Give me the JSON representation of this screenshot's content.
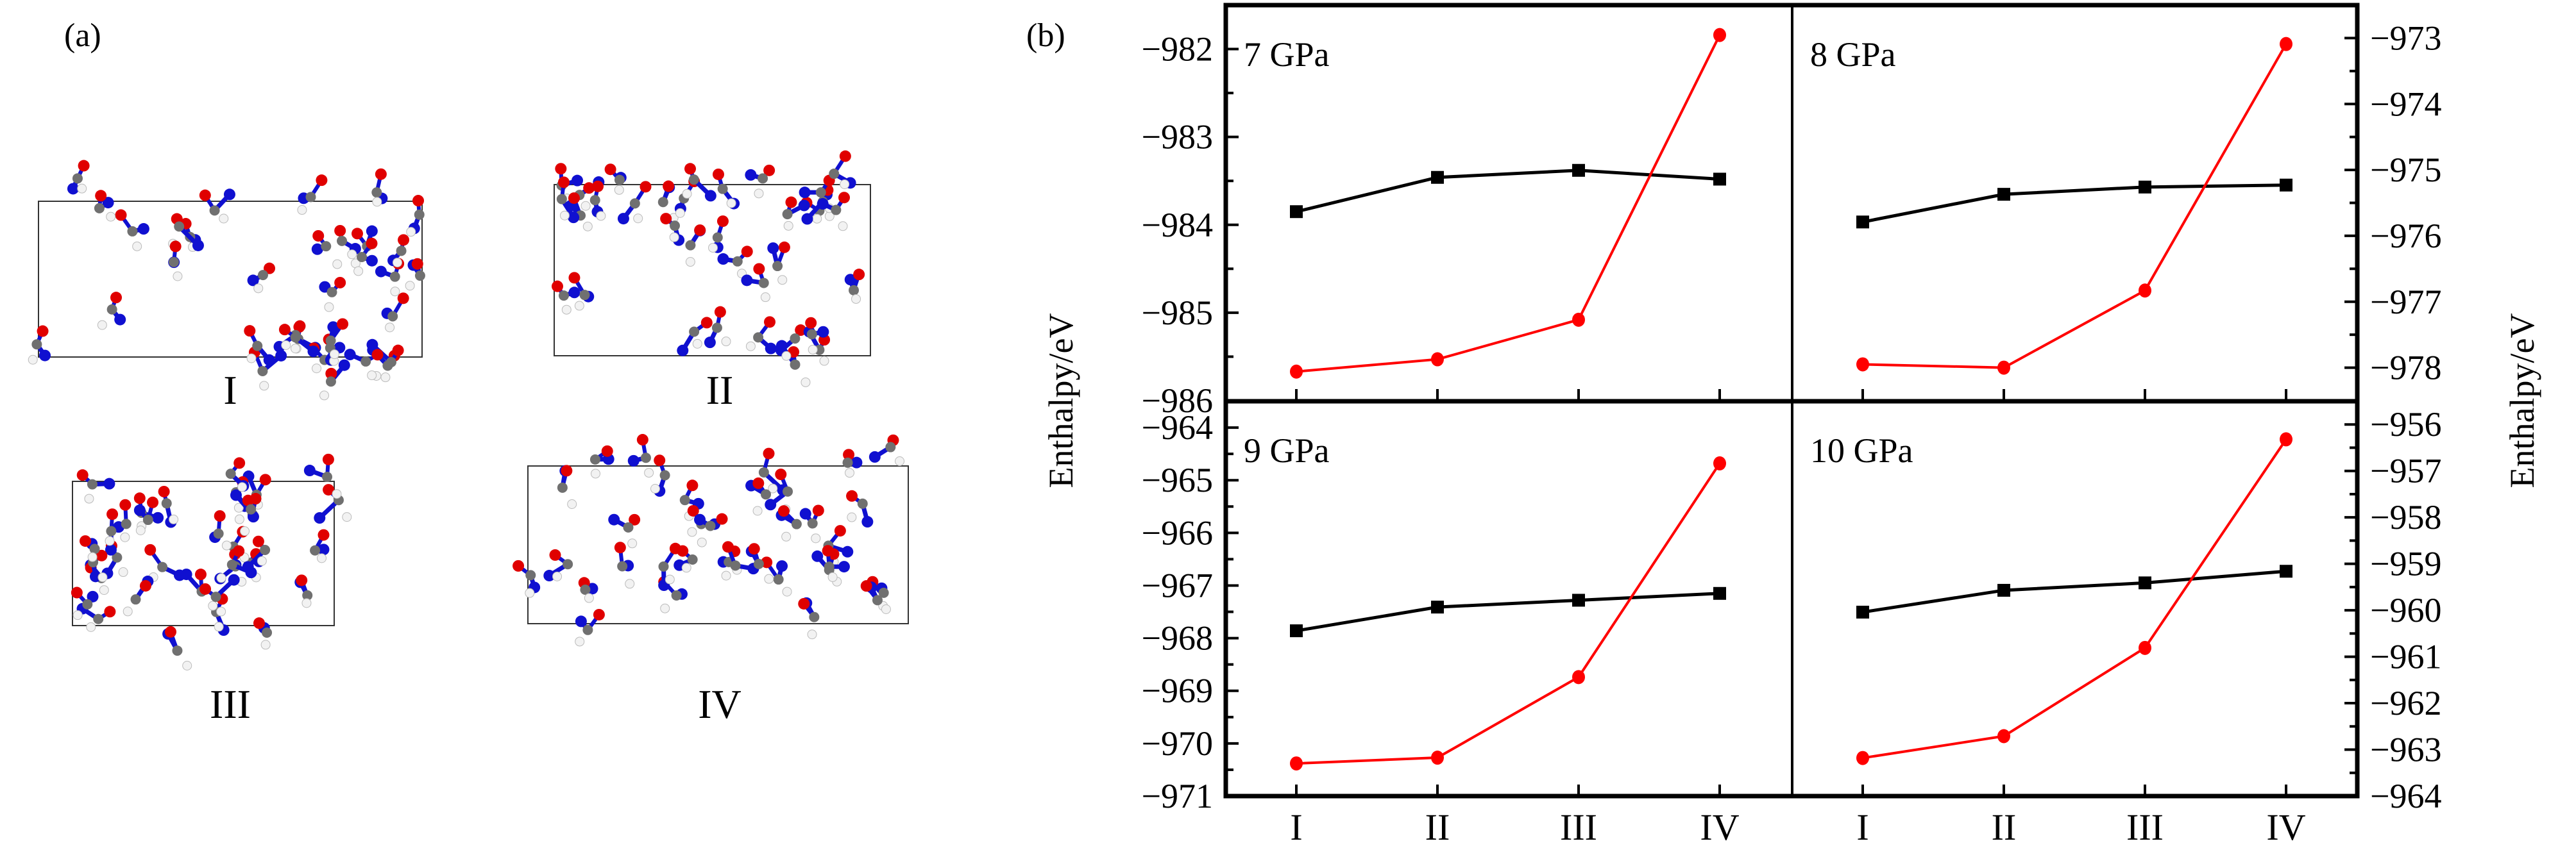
{
  "panel_a": {
    "label": "(a)",
    "structures": [
      {
        "label": "I"
      },
      {
        "label": "II"
      },
      {
        "label": "III"
      },
      {
        "label": "IV"
      }
    ],
    "atom_colors": {
      "N": "#1010d0",
      "O": "#e00000",
      "C": "#707070",
      "H": "#f2f2f2"
    }
  },
  "panel_b": {
    "label": "(b)"
  },
  "chart_data": [
    {
      "type": "line",
      "annotation": "7 GPa",
      "categories": [
        "I",
        "II",
        "III",
        "IV"
      ],
      "ylabel": "Enthalpy/eV",
      "yaxis_side": "left",
      "ylim": [
        -986,
        -981.5
      ],
      "yticks": [
        -986,
        -985,
        -984,
        -983,
        -982
      ],
      "ytick_labels": [
        "−986",
        "−985",
        "−984",
        "−983",
        "−982"
      ],
      "series": [
        {
          "color": "#000000",
          "marker": "square",
          "values": [
            -983.85,
            -983.46,
            -983.38,
            -983.48
          ]
        },
        {
          "color": "#ff0000",
          "marker": "circle",
          "values": [
            -985.67,
            -985.53,
            -985.08,
            -981.84
          ]
        }
      ]
    },
    {
      "type": "line",
      "annotation": "8 GPa",
      "categories": [
        "I",
        "II",
        "III",
        "IV"
      ],
      "ylabel": "Enthalpy/eV",
      "yaxis_side": "right",
      "ylim": [
        -978.5,
        -972.5
      ],
      "yticks": [
        -978,
        -977,
        -976,
        -975,
        -974,
        -973
      ],
      "ytick_labels": [
        "−978",
        "−977",
        "−976",
        "−975",
        "−974",
        "−973"
      ],
      "series": [
        {
          "color": "#000000",
          "marker": "square",
          "values": [
            -975.79,
            -975.37,
            -975.26,
            -975.23
          ]
        },
        {
          "color": "#ff0000",
          "marker": "circle",
          "values": [
            -977.95,
            -978.0,
            -976.83,
            -973.09
          ]
        }
      ]
    },
    {
      "type": "line",
      "annotation": "9 GPa",
      "categories": [
        "I",
        "II",
        "III",
        "IV"
      ],
      "ylabel": "Enthalpy/eV",
      "yaxis_side": "left",
      "ylim": [
        -971,
        -963.5
      ],
      "yticks": [
        -971,
        -970,
        -969,
        -968,
        -967,
        -966,
        -965,
        -964
      ],
      "ytick_labels": [
        "−971",
        "−970",
        "−969",
        "−968",
        "−967",
        "−966",
        "−965",
        "−964"
      ],
      "series": [
        {
          "color": "#000000",
          "marker": "square",
          "values": [
            -967.86,
            -967.41,
            -967.28,
            -967.15
          ]
        },
        {
          "color": "#ff0000",
          "marker": "circle",
          "values": [
            -970.38,
            -970.27,
            -968.74,
            -964.68
          ]
        }
      ]
    },
    {
      "type": "line",
      "annotation": "10 GPa",
      "categories": [
        "I",
        "II",
        "III",
        "IV"
      ],
      "ylabel": "Enthalpy/eV",
      "yaxis_side": "right",
      "ylim": [
        -964,
        -955.5
      ],
      "yticks": [
        -964,
        -963,
        -962,
        -961,
        -960,
        -959,
        -958,
        -957,
        -956
      ],
      "ytick_labels": [
        "−964",
        "−963",
        "−962",
        "−961",
        "−960",
        "−959",
        "−958",
        "−957",
        "−956"
      ],
      "series": [
        {
          "color": "#000000",
          "marker": "square",
          "values": [
            -960.04,
            -959.57,
            -959.41,
            -959.16
          ]
        },
        {
          "color": "#ff0000",
          "marker": "circle",
          "values": [
            -963.18,
            -962.71,
            -960.81,
            -956.32
          ]
        }
      ]
    }
  ]
}
